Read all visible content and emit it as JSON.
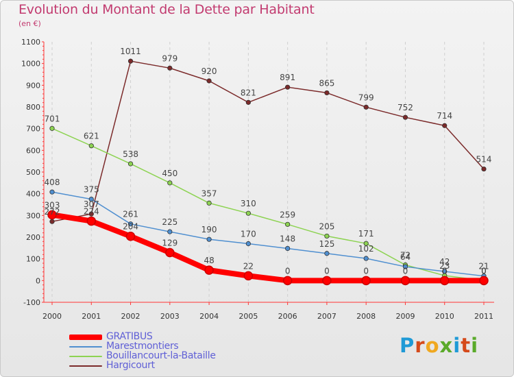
{
  "title": "Evolution du Montant de la Dette par Habitant",
  "subtitle": "(en €)",
  "logo": {
    "text": "Proxiti",
    "letter_colors": [
      "#1f9ad6",
      "#d54a1b",
      "#f0a820",
      "#5aaa2a",
      "#1f9ad6",
      "#d54a1b",
      "#5aaa2a"
    ]
  },
  "chart_data": {
    "type": "line",
    "x": [
      "2000",
      "2001",
      "2002",
      "2003",
      "2004",
      "2005",
      "2006",
      "2007",
      "2008",
      "2009",
      "2010",
      "2011"
    ],
    "ylim": [
      -100,
      1100
    ],
    "yticks": [
      "-100",
      "0",
      "100",
      "200",
      "300",
      "400",
      "500",
      "600",
      "700",
      "800",
      "900",
      "1000",
      "1100"
    ],
    "grid": "vertical dashed",
    "legend_position": "bottom-left",
    "series": [
      {
        "name": "Hargicourt",
        "color": "#7b2a2a",
        "values": [
          272,
          307,
          1011,
          979,
          920,
          821,
          891,
          865,
          799,
          752,
          714,
          514
        ],
        "labels": [
          "272",
          "307",
          "1011",
          "979",
          "920",
          "821",
          "891",
          "865",
          "799",
          "752",
          "714",
          "514"
        ]
      },
      {
        "name": "Bouillancourt-la-Bataille",
        "color": "#8dd352",
        "values": [
          701,
          621,
          538,
          450,
          357,
          310,
          259,
          205,
          171,
          72,
          23,
          0
        ],
        "labels": [
          "701",
          "621",
          "538",
          "450",
          "357",
          "310",
          "259",
          "205",
          "171",
          "72",
          "23",
          "0"
        ]
      },
      {
        "name": "Marestmontiers",
        "color": "#4f8fd0",
        "values": [
          408,
          375,
          261,
          225,
          190,
          170,
          148,
          125,
          102,
          64,
          42,
          21
        ],
        "labels": [
          "408",
          "375",
          "261",
          "225",
          "190",
          "170",
          "148",
          "125",
          "102",
          "64",
          "42",
          "21"
        ]
      },
      {
        "name": "GRATIBUS",
        "color": "#ff0000",
        "values": [
          303,
          274,
          204,
          129,
          48,
          22,
          0,
          0,
          0,
          0,
          0,
          0
        ],
        "labels": [
          "303",
          "274",
          "204",
          "129",
          "48",
          "22",
          "0",
          "0",
          "0",
          "0",
          "0",
          "0"
        ]
      }
    ],
    "legend": [
      "GRATIBUS",
      "Marestmontiers",
      "Bouillancourt-la-Bataille",
      "Hargicourt"
    ]
  }
}
